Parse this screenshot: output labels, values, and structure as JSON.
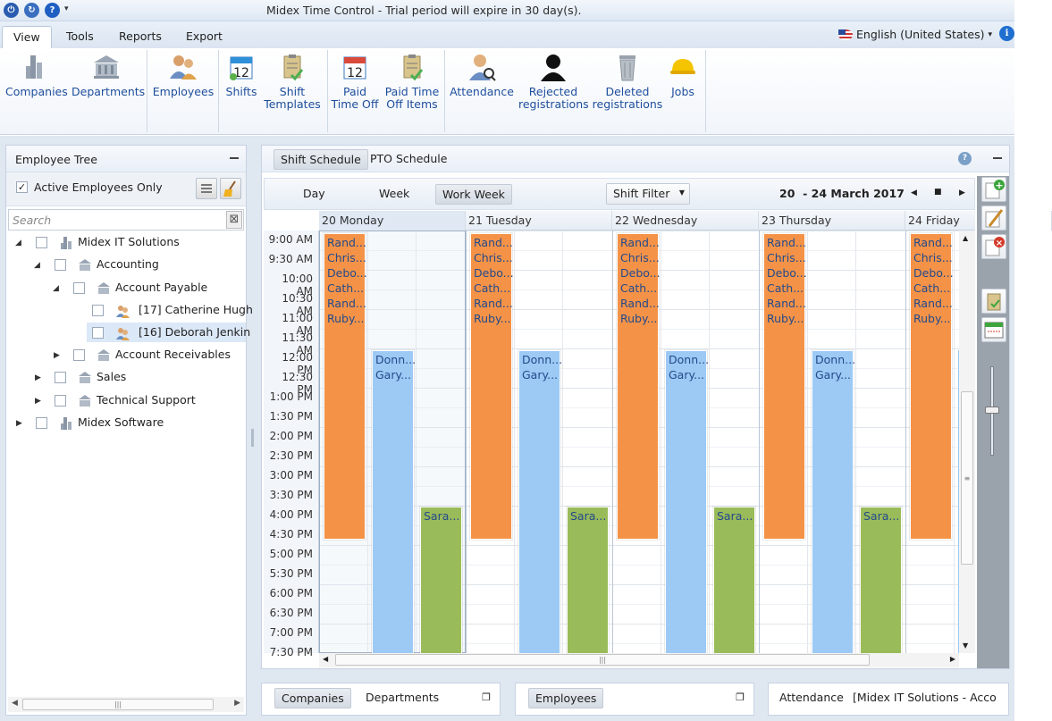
{
  "window": {
    "title": "Midex Time Control - Trial period will expire in 30 day(s)."
  },
  "menu": {
    "tabs": [
      "View",
      "Tools",
      "Reports",
      "Export"
    ],
    "language": "English (United States)"
  },
  "ribbon": {
    "items": [
      {
        "label": "Companies"
      },
      {
        "label": "Departments"
      },
      {
        "label": "Employees"
      },
      {
        "label": "Shifts"
      },
      {
        "label": "Shift\nTemplates"
      },
      {
        "label": "Paid\nTime Off"
      },
      {
        "label": "Paid Time\nOff Items"
      },
      {
        "label": "Attendance"
      },
      {
        "label": "Rejected\nregistrations"
      },
      {
        "label": "Deleted\nregistrations"
      },
      {
        "label": "Jobs"
      }
    ]
  },
  "employee_tree": {
    "title": "Employee Tree",
    "active_only_label": "Active Employees Only",
    "search_placeholder": "Search",
    "nodes": [
      "Midex IT Solutions",
      "Accounting",
      "Account Payable",
      "[17] Catherine Hugh",
      "[16] Deborah Jenkin",
      "Account Receivables",
      "Sales",
      "Technical Support",
      "Midex Software"
    ]
  },
  "schedule": {
    "tabs": [
      "Shift Schedule",
      "PTO Schedule"
    ],
    "views": [
      "Day",
      "Week",
      "Work Week"
    ],
    "filter_label": "Shift Filter",
    "range": "20  - 24 March 2017",
    "days": [
      "20 Monday",
      "21 Tuesday",
      "22 Wednesday",
      "23 Thursday",
      "24 Friday"
    ],
    "times": [
      "9:00 AM",
      "9:30 AM",
      "10:00 AM",
      "10:30 AM",
      "11:00 AM",
      "11:30 AM",
      "12:00 PM",
      "12:30 PM",
      "1:00 PM",
      "1:30 PM",
      "2:00 PM",
      "2:30 PM",
      "3:00 PM",
      "3:30 PM",
      "4:00 PM",
      "4:30 PM",
      "5:00 PM",
      "5:30 PM",
      "6:00 PM",
      "6:30 PM",
      "7:00 PM",
      "7:30 PM"
    ],
    "orange_names": [
      "Rand...",
      "Chris...",
      "Debo...",
      "Cath...",
      "Rand...",
      "Ruby..."
    ],
    "blue_names": [
      "Donn...",
      "Gary..."
    ],
    "green_names": [
      "Sara..."
    ]
  },
  "bottom": {
    "panel1": [
      "Companies",
      "Departments"
    ],
    "panel2": [
      "Employees"
    ],
    "panel3": {
      "label": "Attendance",
      "value": "[Midex IT Solutions - Acco"
    }
  },
  "colors": {
    "orange": "#f49348",
    "blue": "#9ccaf5",
    "green": "#9abb59",
    "accent": "#1e4e9c"
  }
}
